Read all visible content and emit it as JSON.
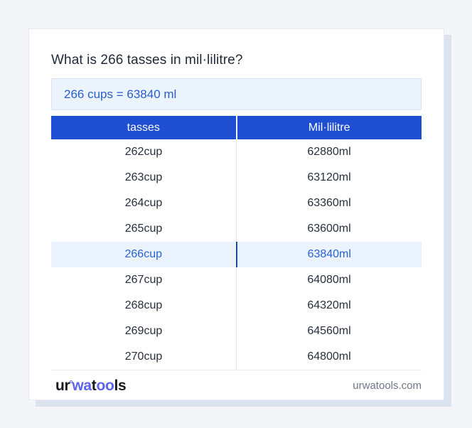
{
  "question": "What is 266 tasses in mil·lilitre?",
  "answer": "266 cups = 63840 ml",
  "table": {
    "columns": [
      "tasses",
      "Mil·lilitre"
    ],
    "rows": [
      {
        "tasses": "262cup",
        "ml": "62880ml",
        "highlighted": false
      },
      {
        "tasses": "263cup",
        "ml": "63120ml",
        "highlighted": false
      },
      {
        "tasses": "264cup",
        "ml": "63360ml",
        "highlighted": false
      },
      {
        "tasses": "265cup",
        "ml": "63600ml",
        "highlighted": false
      },
      {
        "tasses": "266cup",
        "ml": "63840ml",
        "highlighted": true
      },
      {
        "tasses": "267cup",
        "ml": "64080ml",
        "highlighted": false
      },
      {
        "tasses": "268cup",
        "ml": "64320ml",
        "highlighted": false
      },
      {
        "tasses": "269cup",
        "ml": "64560ml",
        "highlighted": false
      },
      {
        "tasses": "270cup",
        "ml": "64800ml",
        "highlighted": false
      }
    ]
  },
  "footer": {
    "logo_segments": [
      {
        "text": "ur",
        "color": "#17181d"
      },
      {
        "text": "°",
        "color": "#5b63f0",
        "style": "degree"
      },
      {
        "text": "wa",
        "color": "#5b63f0"
      },
      {
        "text": "t",
        "color": "#17181d"
      },
      {
        "text": "oo",
        "color": "#5b63f0"
      },
      {
        "text": "ls",
        "color": "#17181d"
      }
    ],
    "domain": "urwatools.com"
  },
  "colors": {
    "page_bg": "#f3f5f9",
    "card_bg": "#ffffff",
    "card_shadow": "#dce2ee",
    "header_bg": "#1e4fd2",
    "header_text": "#ffffff",
    "row_text": "#272f3d",
    "highlight_bg": "#eaf3fe",
    "highlight_text": "#2a63d4",
    "highlight_divider": "#1d4f96",
    "answer_bg": "#ebf3fc",
    "answer_border": "#d7e3f5",
    "answer_text": "#2b5ec9",
    "domain_text": "#6f7785"
  }
}
